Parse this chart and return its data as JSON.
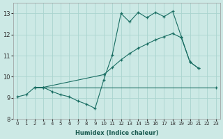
{
  "xlabel": "Humidex (Indice chaleur)",
  "xlim": [
    -0.5,
    23.5
  ],
  "ylim": [
    8.0,
    13.5
  ],
  "yticks": [
    8,
    9,
    10,
    11,
    12,
    13
  ],
  "xticks": [
    0,
    1,
    2,
    3,
    4,
    5,
    6,
    7,
    8,
    9,
    10,
    11,
    12,
    13,
    14,
    15,
    16,
    17,
    18,
    19,
    20,
    21,
    22,
    23
  ],
  "bg_color": "#cce9e5",
  "grid_color": "#aad4cf",
  "line_color": "#1a6e63",
  "line1_x": [
    0,
    1,
    2,
    3,
    4,
    5,
    6,
    7,
    8,
    9,
    10,
    11,
    12,
    13,
    14,
    15,
    16,
    17,
    18,
    19,
    20,
    21,
    22,
    23
  ],
  "line1_y": [
    9.05,
    9.15,
    9.5,
    9.5,
    9.3,
    9.15,
    9.05,
    8.85,
    8.7,
    8.5,
    9.85,
    11.05,
    13.0,
    12.6,
    13.05,
    12.8,
    13.05,
    12.85,
    13.1,
    11.9,
    10.7,
    10.4,
    null,
    null
  ],
  "line2_x": [
    2,
    23
  ],
  "line2_y": [
    9.5,
    9.5
  ],
  "line3_x": [
    3,
    10,
    11,
    12,
    13,
    14,
    15,
    16,
    17,
    18,
    19,
    20,
    21,
    22,
    23
  ],
  "line3_y": [
    9.5,
    10.1,
    10.5,
    10.8,
    11.1,
    11.4,
    11.55,
    11.75,
    11.9,
    12.05,
    11.9,
    null,
    null,
    null,
    null
  ]
}
